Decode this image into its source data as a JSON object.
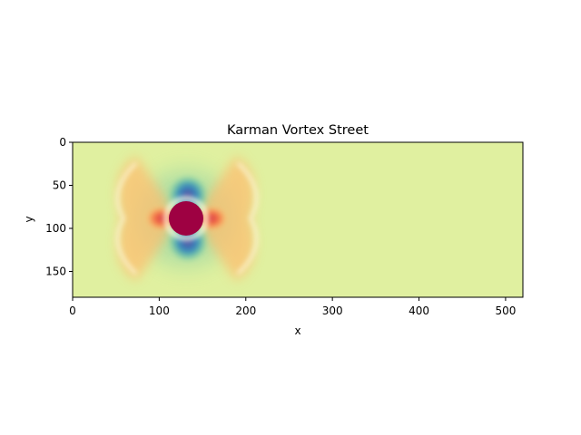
{
  "chart_data": {
    "type": "heatmap",
    "title": "Karman Vortex Street",
    "xlabel": "x",
    "ylabel": "y",
    "xlim": [
      0,
      520
    ],
    "ylim": [
      180,
      0
    ],
    "y_inverted": true,
    "xticks": [
      0,
      100,
      200,
      300,
      400,
      500
    ],
    "yticks": [
      0,
      50,
      100,
      150
    ],
    "colormap": "Spectral",
    "background_color": "#e0f0a0",
    "grid": false,
    "legend": "none",
    "field_features": {
      "obstacle_center": [
        131,
        88
      ],
      "obstacle_radius": 20,
      "wake_extent_x": [
        55,
        212
      ]
    }
  }
}
